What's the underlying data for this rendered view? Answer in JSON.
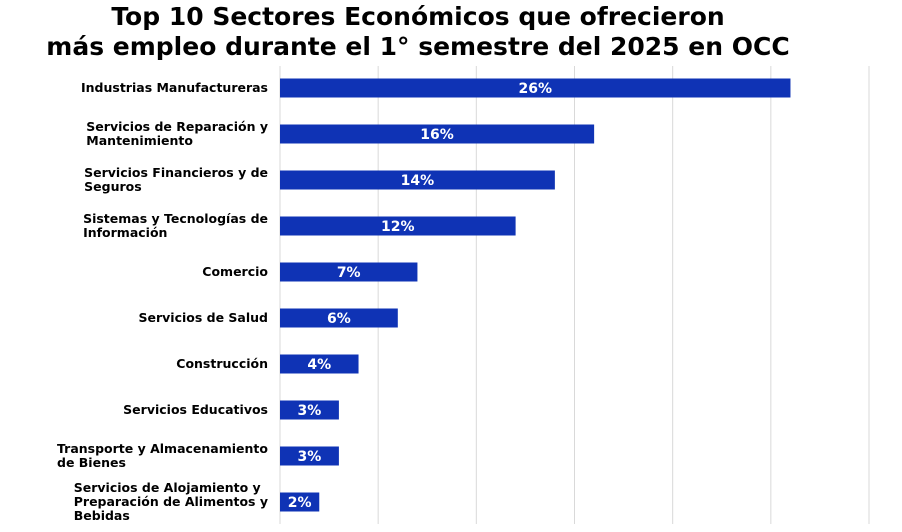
{
  "chart_data": {
    "type": "bar",
    "orientation": "horizontal",
    "title": "Top 10 Sectores Económicos que ofrecieron\nmás empleo durante el 1° semestre del 2025 en OCC",
    "categories": [
      "Industrias Manufactureras",
      "Servicios de Reparación y\nMantenimiento",
      "Servicios Financieros y de\nSeguros",
      "Sistemas y Tecnologías de\nInformación",
      "Comercio",
      "Servicios de Salud",
      "Construcción",
      "Servicios Educativos",
      "Transporte y Almacenamiento\nde Bienes",
      "Servicios de Alojamiento y\nPreparación de Alimentos y\nBebidas"
    ],
    "values": [
      26,
      16,
      14,
      12,
      7,
      6,
      4,
      3,
      3,
      2
    ],
    "data_labels": [
      "26%",
      "16%",
      "14%",
      "12%",
      "7%",
      "6%",
      "4%",
      "3%",
      "3%",
      "2%"
    ],
    "xlim": [
      0,
      30
    ],
    "grid": true,
    "legend": "none",
    "bar_color": "#0F33B5",
    "grid_color": "#D9D9D9"
  }
}
